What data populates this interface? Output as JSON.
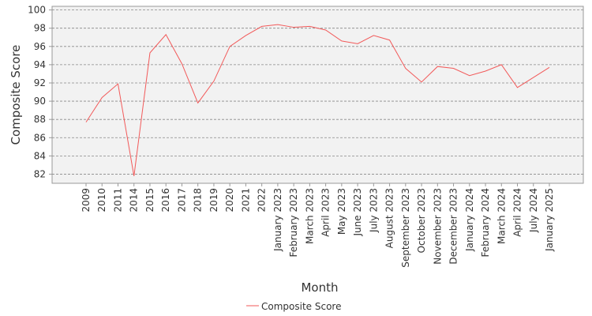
{
  "chart_data": {
    "type": "line",
    "x_label": "Month",
    "y_label": "Composite Score",
    "categories": [
      "2009",
      "2010",
      "2011",
      "2014",
      "2015",
      "2016",
      "2017",
      "2018",
      "2019",
      "2020",
      "2021",
      "2022",
      "January 2023",
      "February 2023",
      "March 2023",
      "April 2023",
      "May 2023",
      "June 2023",
      "July 2023",
      "August 2023",
      "September 2023",
      "October 2023",
      "November 2023",
      "December 2023",
      "January 2024",
      "February 2024",
      "March 2024",
      "April 2024",
      "July 2024",
      "January 2025"
    ],
    "series": [
      {
        "name": "Composite Score",
        "color": "#f25a5a",
        "values": [
          87.7,
          90.4,
          91.9,
          81.8,
          95.3,
          97.3,
          94.1,
          89.8,
          92.2,
          96.0,
          97.2,
          98.2,
          98.4,
          98.1,
          98.2,
          97.8,
          96.6,
          96.3,
          97.2,
          96.7,
          93.6,
          92.1,
          93.8,
          93.6,
          92.8,
          93.3,
          94.0,
          91.5,
          92.6,
          93.7
        ]
      }
    ],
    "ylim": [
      81,
      100.4
    ],
    "yticks": [
      82,
      84,
      86,
      88,
      90,
      92,
      94,
      96,
      98,
      100
    ],
    "grid": true
  }
}
